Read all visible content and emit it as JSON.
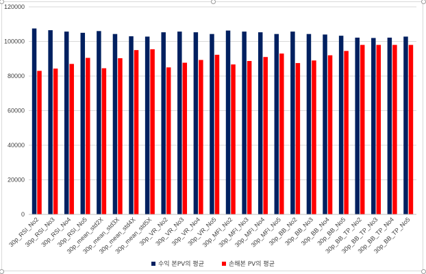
{
  "chart_data": {
    "type": "bar",
    "title": "",
    "xlabel": "",
    "ylabel": "",
    "ylim": [
      0,
      120000
    ],
    "yticks": [
      0,
      20000,
      40000,
      60000,
      80000,
      100000,
      120000
    ],
    "grid": true,
    "legend_position": "bottom",
    "categories": [
      "30p_RSI_No2",
      "30p_RSI_No3",
      "30p_RSI_No4",
      "30p_RSI_No5",
      "30p_mean_std2X",
      "30p_mean_std3X",
      "30p_mean_std4X",
      "30p_mean_std5X",
      "30p_VR_No2",
      "30p_VR_No3",
      "30p_VR_No4",
      "30p_VR_No5",
      "30p_MFI_No2",
      "30p_MFI_No3",
      "30p_MFI_No4",
      "30p_MFI_No5",
      "30p_BB_No2",
      "30p_BB_No3",
      "30p_BB_No4",
      "30p_BB_No5",
      "30p_BB_TP_No2",
      "30p_BB_TP_No3",
      "30p_BB_TP_No4",
      "30p_BB_TP_No5"
    ],
    "series": [
      {
        "name": "수익 본PV의 평균",
        "color": "#002060",
        "values": [
          107500,
          106500,
          105700,
          105000,
          106000,
          104300,
          103000,
          102800,
          105300,
          105700,
          105300,
          104300,
          106300,
          105700,
          105300,
          104300,
          105700,
          104300,
          104000,
          103300,
          102200,
          102000,
          102200,
          102800
        ]
      },
      {
        "name": "손해본 PV의 평균",
        "color": "#ff0000",
        "values": [
          83000,
          84300,
          87000,
          90500,
          84500,
          90300,
          95000,
          95500,
          85000,
          87700,
          89300,
          92300,
          86700,
          88700,
          91000,
          93000,
          87500,
          89000,
          92000,
          94500,
          98000,
          98000,
          98000,
          98000
        ]
      }
    ]
  }
}
